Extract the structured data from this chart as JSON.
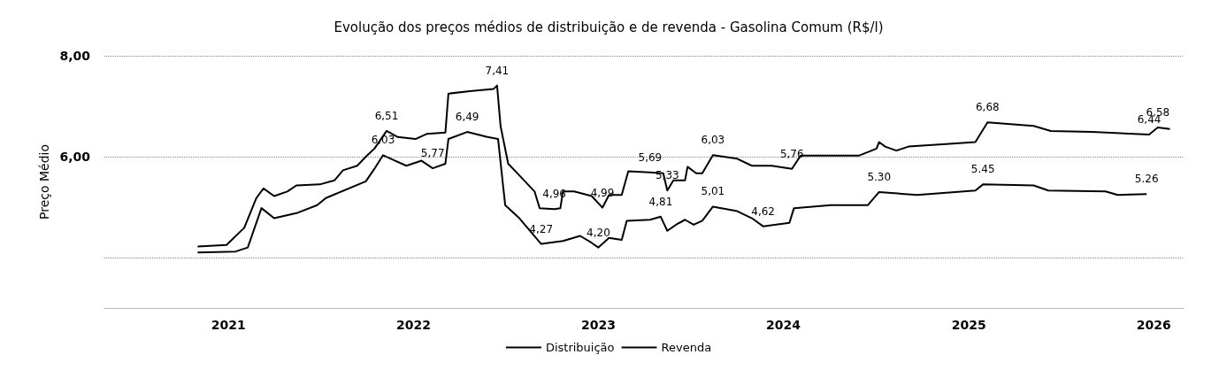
{
  "chart_data": {
    "type": "line",
    "title": "Evolução dos preços médios de distribuição e de revenda - Gasolina Comum (R$/l)",
    "ylabel": "Preço Médio",
    "xlim": [
      "2020-05-01",
      "2026-03-01"
    ],
    "xticks": [
      "2021",
      "2022",
      "2023",
      "2024",
      "2025",
      "2026"
    ],
    "ylim": [
      3,
      8
    ],
    "yticks": [
      {
        "value": 4,
        "label": null
      },
      {
        "value": 6,
        "label": "6,00"
      },
      {
        "value": 8,
        "label": "8,00"
      }
    ],
    "grid": "y",
    "legend": "bottom",
    "series": [
      {
        "name": "Distribuição",
        "color": "#000000",
        "x": [
          "2020-11-01",
          "2021-01-15",
          "2021-02-08",
          "2021-03-07",
          "2021-04-01",
          "2021-05-15",
          "2021-06-25",
          "2021-07-12",
          "2021-09-29",
          "2021-10-16",
          "2021-11-02",
          "2021-11-26",
          "2021-12-18",
          "2022-01-17",
          "2022-02-08",
          "2022-03-05",
          "2022-03-11",
          "2022-04-17",
          "2022-05-27",
          "2022-06-17",
          "2022-07-01",
          "2022-07-29",
          "2022-09-10",
          "2022-10-23",
          "2022-11-26",
          "2022-12-19",
          "2023-01-01",
          "2023-01-22",
          "2023-02-16",
          "2023-02-26",
          "2023-04-13",
          "2023-05-04",
          "2023-05-17",
          "2023-06-03",
          "2023-06-21",
          "2023-07-08",
          "2023-07-25",
          "2023-08-15",
          "2023-10-02",
          "2023-10-31",
          "2023-11-22",
          "2024-01-13",
          "2024-01-22",
          "2024-04-04",
          "2024-06-16",
          "2024-07-08",
          "2024-09-21",
          "2025-01-14",
          "2025-01-29",
          "2025-05-09",
          "2025-06-07",
          "2025-09-28",
          "2025-10-22",
          "2025-12-18"
        ],
        "values": [
          4.1,
          4.12,
          4.2,
          4.98,
          4.78,
          4.88,
          5.04,
          5.18,
          5.51,
          5.76,
          6.03,
          5.92,
          5.82,
          5.92,
          5.77,
          5.86,
          6.35,
          6.49,
          6.39,
          6.35,
          5.04,
          4.78,
          4.27,
          4.33,
          4.43,
          4.29,
          4.2,
          4.39,
          4.35,
          4.73,
          4.75,
          4.81,
          4.53,
          4.65,
          4.75,
          4.65,
          4.73,
          5.01,
          4.92,
          4.78,
          4.62,
          4.69,
          4.98,
          5.04,
          5.04,
          5.3,
          5.24,
          5.33,
          5.45,
          5.43,
          5.33,
          5.31,
          5.24,
          5.26
        ],
        "value_labels": [
          null,
          null,
          null,
          null,
          null,
          null,
          null,
          null,
          null,
          null,
          "6,03",
          null,
          null,
          null,
          "5,77",
          null,
          null,
          "6,49",
          null,
          null,
          null,
          null,
          "4,27",
          null,
          null,
          null,
          "4,20",
          null,
          null,
          null,
          null,
          "4,81",
          null,
          null,
          null,
          null,
          null,
          "5,01",
          null,
          null,
          "4,62",
          null,
          null,
          null,
          null,
          "5.30",
          null,
          null,
          "5.45",
          null,
          null,
          null,
          null,
          "5.26"
        ]
      },
      {
        "name": "Revenda",
        "color": "#000000",
        "x": [
          "2020-11-01",
          "2020-12-28",
          "2021-02-01",
          "2021-02-25",
          "2021-03-11",
          "2021-04-01",
          "2021-04-27",
          "2021-05-15",
          "2021-06-30",
          "2021-07-29",
          "2021-08-15",
          "2021-09-12",
          "2021-09-29",
          "2021-10-16",
          "2021-11-09",
          "2021-12-01",
          "2022-01-05",
          "2022-01-27",
          "2022-03-05",
          "2022-03-11",
          "2022-04-22",
          "2022-06-08",
          "2022-06-15",
          "2022-06-22",
          "2022-07-07",
          "2022-07-29",
          "2022-08-28",
          "2022-09-07",
          "2022-10-06",
          "2022-10-18",
          "2022-10-23",
          "2022-11-14",
          "2022-12-19",
          "2023-01-09",
          "2023-01-22",
          "2023-02-16",
          "2023-03-01",
          "2023-04-13",
          "2023-05-09",
          "2023-05-17",
          "2023-05-29",
          "2023-06-21",
          "2023-06-26",
          "2023-07-13",
          "2023-07-25",
          "2023-08-15",
          "2023-10-02",
          "2023-10-31",
          "2023-12-09",
          "2024-01-18",
          "2024-02-04",
          "2024-05-29",
          "2024-07-03",
          "2024-07-08",
          "2024-07-20",
          "2024-08-11",
          "2024-09-04",
          "2024-11-17",
          "2025-01-14",
          "2025-02-07",
          "2025-05-09",
          "2025-06-12",
          "2025-09-01",
          "2025-12-23",
          "2026-01-09",
          "2026-02-02"
        ],
        "values": [
          4.22,
          4.25,
          4.59,
          5.18,
          5.37,
          5.22,
          5.31,
          5.43,
          5.45,
          5.53,
          5.73,
          5.82,
          6.0,
          6.16,
          6.51,
          6.39,
          6.35,
          6.45,
          6.48,
          7.25,
          7.3,
          7.34,
          7.41,
          6.6,
          5.86,
          5.63,
          5.31,
          4.98,
          4.96,
          4.98,
          5.31,
          5.31,
          5.22,
          4.99,
          5.24,
          5.24,
          5.71,
          5.69,
          5.67,
          5.33,
          5.53,
          5.53,
          5.8,
          5.67,
          5.67,
          6.03,
          5.96,
          5.82,
          5.82,
          5.76,
          6.02,
          6.02,
          6.16,
          6.29,
          6.2,
          6.12,
          6.2,
          6.25,
          6.29,
          6.68,
          6.61,
          6.51,
          6.49,
          6.44,
          6.58,
          6.55
        ],
        "value_labels": [
          null,
          null,
          null,
          null,
          null,
          null,
          null,
          null,
          null,
          null,
          null,
          null,
          null,
          null,
          "6,51",
          null,
          null,
          null,
          null,
          null,
          null,
          null,
          "7,41",
          null,
          null,
          null,
          null,
          null,
          "4,96",
          null,
          null,
          null,
          null,
          "4,99",
          null,
          null,
          null,
          "5,69",
          null,
          "5,33",
          null,
          null,
          null,
          null,
          null,
          "6,03",
          null,
          null,
          null,
          "5,76",
          null,
          null,
          null,
          null,
          null,
          null,
          null,
          null,
          null,
          "6,68",
          null,
          null,
          null,
          "6,44",
          "6,58",
          null
        ]
      }
    ]
  }
}
